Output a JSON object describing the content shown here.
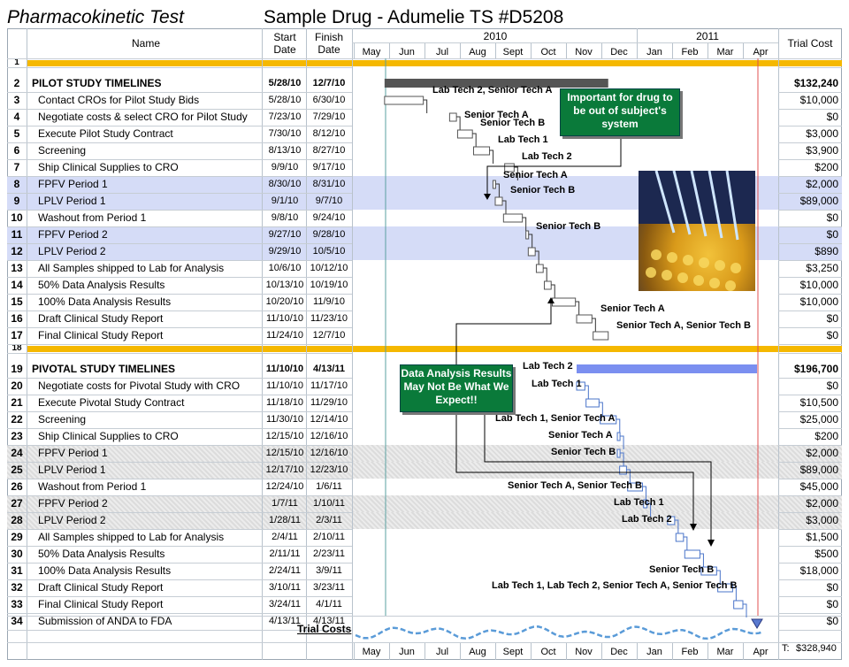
{
  "header": {
    "left_title": "Pharmacokinetic Test",
    "main_title": "Sample Drug - Adumelie TS #D5208",
    "col_name": "Name",
    "col_start": "Start Date",
    "col_finish": "Finish Date",
    "col_cost": "Trial Cost",
    "year_2010": "2010",
    "year_2011": "2011",
    "months": [
      "May",
      "Jun",
      "Jul",
      "Aug",
      "Sept",
      "Oct",
      "Nov",
      "Dec",
      "Jan",
      "Feb",
      "Mar",
      "Apr"
    ],
    "footer_months": [
      "May",
      "Jun",
      "Jul",
      "Aug",
      "Sept",
      "Oct",
      "Nov",
      "Dec",
      "Jan",
      "Feb",
      "Mar",
      "Apr"
    ]
  },
  "rows": [
    {
      "n": "1",
      "name": "",
      "start": "",
      "finish": "",
      "cost": "",
      "style": "spacer"
    },
    {
      "n": "2",
      "name": "PILOT STUDY TIMELINES",
      "start": "5/28/10",
      "finish": "12/7/10",
      "cost": "$132,240",
      "style": "section"
    },
    {
      "n": "3",
      "name": "Contact CROs for Pilot Study Bids",
      "start": "5/28/10",
      "finish": "6/30/10",
      "cost": "$10,000",
      "style": ""
    },
    {
      "n": "4",
      "name": "Negotiate costs & select CRO for Pilot Study",
      "start": "7/23/10",
      "finish": "7/29/10",
      "cost": "$0",
      "style": ""
    },
    {
      "n": "5",
      "name": "Execute Pilot Study Contract",
      "start": "7/30/10",
      "finish": "8/12/10",
      "cost": "$3,000",
      "style": ""
    },
    {
      "n": "6",
      "name": "Screening",
      "start": "8/13/10",
      "finish": "8/27/10",
      "cost": "$3,900",
      "style": ""
    },
    {
      "n": "7",
      "name": "Ship Clinical Supplies to CRO",
      "start": "9/9/10",
      "finish": "9/17/10",
      "cost": "$200",
      "style": ""
    },
    {
      "n": "8",
      "name": "FPFV Period 1",
      "start": "8/30/10",
      "finish": "8/31/10",
      "cost": "$2,000",
      "style": "blue"
    },
    {
      "n": "9",
      "name": "LPLV Period 1",
      "start": "9/1/10",
      "finish": "9/7/10",
      "cost": "$89,000",
      "style": "blue"
    },
    {
      "n": "10",
      "name": "Washout from Period 1",
      "start": "9/8/10",
      "finish": "9/24/10",
      "cost": "$0",
      "style": ""
    },
    {
      "n": "11",
      "name": "FPFV Period 2",
      "start": "9/27/10",
      "finish": "9/28/10",
      "cost": "$0",
      "style": "blue"
    },
    {
      "n": "12",
      "name": "LPLV Period 2",
      "start": "9/29/10",
      "finish": "10/5/10",
      "cost": "$890",
      "style": "blue"
    },
    {
      "n": "13",
      "name": "All Samples shipped to Lab for Analysis",
      "start": "10/6/10",
      "finish": "10/12/10",
      "cost": "$3,250",
      "style": ""
    },
    {
      "n": "14",
      "name": "50% Data Analysis Results",
      "start": "10/13/10",
      "finish": "10/19/10",
      "cost": "$10,000",
      "style": ""
    },
    {
      "n": "15",
      "name": "100% Data Analysis Results",
      "start": "10/20/10",
      "finish": "11/9/10",
      "cost": "$10,000",
      "style": ""
    },
    {
      "n": "16",
      "name": "Draft Clinical Study Report",
      "start": "11/10/10",
      "finish": "11/23/10",
      "cost": "$0",
      "style": ""
    },
    {
      "n": "17",
      "name": "Final Clinical Study Report",
      "start": "11/24/10",
      "finish": "12/7/10",
      "cost": "$0",
      "style": ""
    },
    {
      "n": "18",
      "name": "",
      "start": "",
      "finish": "",
      "cost": "",
      "style": "spacer"
    },
    {
      "n": "19",
      "name": "PIVOTAL STUDY TIMELINES",
      "start": "11/10/10",
      "finish": "4/13/11",
      "cost": "$196,700",
      "style": "section"
    },
    {
      "n": "20",
      "name": "Negotiate costs for Pivotal Study with CRO",
      "start": "11/10/10",
      "finish": "11/17/10",
      "cost": "$0",
      "style": ""
    },
    {
      "n": "21",
      "name": "Execute Pivotal Study Contract",
      "start": "11/18/10",
      "finish": "11/29/10",
      "cost": "$10,500",
      "style": ""
    },
    {
      "n": "22",
      "name": "Screening",
      "start": "11/30/10",
      "finish": "12/14/10",
      "cost": "$25,000",
      "style": ""
    },
    {
      "n": "23",
      "name": "Ship Clinical Supplies to CRO",
      "start": "12/15/10",
      "finish": "12/16/10",
      "cost": "$200",
      "style": ""
    },
    {
      "n": "24",
      "name": "FPFV Period 1",
      "start": "12/15/10",
      "finish": "12/16/10",
      "cost": "$2,000",
      "style": "gray"
    },
    {
      "n": "25",
      "name": "LPLV Period 1",
      "start": "12/17/10",
      "finish": "12/23/10",
      "cost": "$89,000",
      "style": "gray"
    },
    {
      "n": "26",
      "name": "Washout from Period 1",
      "start": "12/24/10",
      "finish": "1/6/11",
      "cost": "$45,000",
      "style": ""
    },
    {
      "n": "27",
      "name": "FPFV Period 2",
      "start": "1/7/11",
      "finish": "1/10/11",
      "cost": "$2,000",
      "style": "gray"
    },
    {
      "n": "28",
      "name": "LPLV Period 2",
      "start": "1/28/11",
      "finish": "2/3/11",
      "cost": "$3,000",
      "style": "gray"
    },
    {
      "n": "29",
      "name": "All Samples shipped to Lab for Analysis",
      "start": "2/4/11",
      "finish": "2/10/11",
      "cost": "$1,500",
      "style": ""
    },
    {
      "n": "30",
      "name": "50% Data Analysis Results",
      "start": "2/11/11",
      "finish": "2/23/11",
      "cost": "$500",
      "style": ""
    },
    {
      "n": "31",
      "name": "100% Data Analysis Results",
      "start": "2/24/11",
      "finish": "3/9/11",
      "cost": "$18,000",
      "style": ""
    },
    {
      "n": "32",
      "name": "Draft Clinical Study Report",
      "start": "3/10/11",
      "finish": "3/23/11",
      "cost": "$0",
      "style": ""
    },
    {
      "n": "33",
      "name": "Final Clinical Study Report",
      "start": "3/24/11",
      "finish": "4/1/11",
      "cost": "$0",
      "style": ""
    },
    {
      "n": "34",
      "name": "Submission of ANDA to FDA",
      "start": "4/13/11",
      "finish": "4/13/11",
      "cost": "$0",
      "style": ""
    }
  ],
  "resources": {
    "r3": "Lab Tech 2, Senior Tech A",
    "r4": "Senior Tech A",
    "r5": "Senior Tech B",
    "r6": "Lab Tech 1",
    "r7": "Lab Tech 2",
    "r8": "Senior Tech A",
    "r9": "Senior Tech B",
    "r11": "Senior Tech B",
    "r16": "Senior Tech A",
    "r17": "Senior Tech A, Senior Tech B",
    "r20": "Lab Tech 2",
    "r21": "Lab Tech 1",
    "r23": "Lab Tech 1, Senior Tech A",
    "r24": "Senior Tech A",
    "r25": "Senior Tech B",
    "r27": "Senior Tech A, Senior Tech B",
    "r28": "Lab Tech 1",
    "r29": "Lab Tech 2",
    "r32": "Senior Tech B",
    "r33": "Lab Tech 1, Lab Tech 2, Senior Tech A, Senior Tech B"
  },
  "notes": {
    "important": "Important for drug to be out of subject's system",
    "data_analysis": "Data Analysis Results May Not Be What We Expect!!"
  },
  "footer": {
    "trial_costs_label": "Trial Costs",
    "total_label": "T:",
    "total_value": "$328,940"
  },
  "colors": {
    "section_bar": "#f5b800",
    "blue_band": "#d5dcf7",
    "pilot_summary": "#555555",
    "pivotal_summary": "#7b8ff0",
    "note_bg": "#0a7a3a",
    "today_line": "#e05050"
  }
}
